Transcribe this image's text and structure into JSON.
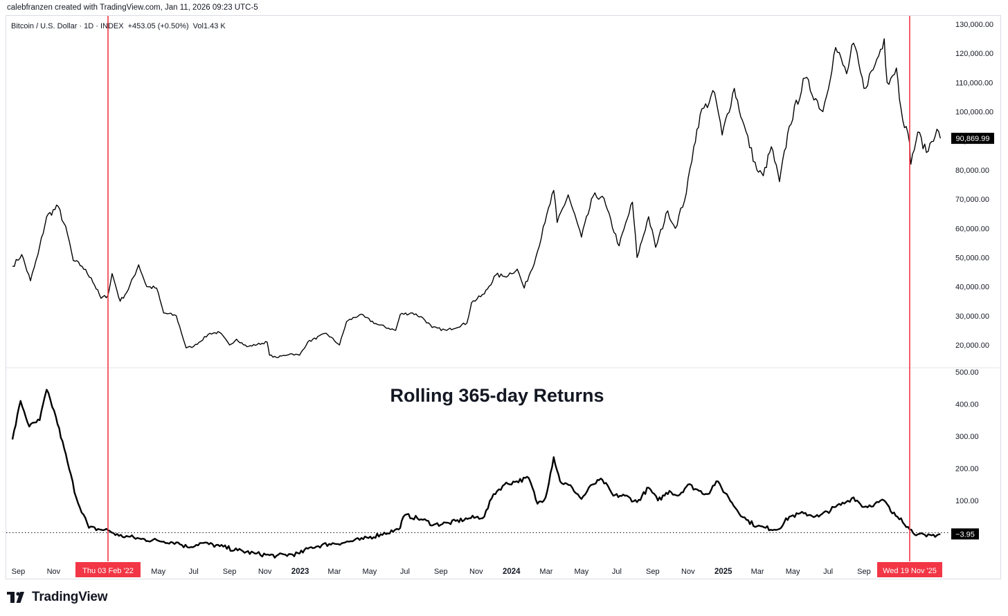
{
  "credit": "calebfranzen created with TradingView.com, Jan 11, 2026 09:23 UTC-5",
  "legend": {
    "symbol": "Bitcoin / U.S. Dollar · 1D · INDEX",
    "change": "+453.05 (+0.50%)",
    "volume": "Vol1.43 K"
  },
  "annotation_title": "Rolling 365-day Returns",
  "brand": {
    "name": "TradingView",
    "logo_icon": "tradingview-logo-icon"
  },
  "colors": {
    "line": "#000000",
    "marker": "#f23645",
    "text": "#131722",
    "axis_text": "#131722"
  },
  "markers": [
    {
      "date": "2022-02-03",
      "label": "Thu 03 Feb '22"
    },
    {
      "date": "2025-11-19",
      "label": "Wed 19 Nov '25"
    }
  ],
  "chart_data": [
    {
      "type": "line",
      "title": "",
      "series_name": "Bitcoin / U.S. Dollar",
      "ylim": [
        14000,
        130000
      ],
      "yticks": [
        20000,
        30000,
        40000,
        50000,
        60000,
        70000,
        80000,
        90000,
        100000,
        110000,
        120000,
        130000
      ],
      "ytick_labels": [
        "20,000.00",
        "30,000.00",
        "40,000.00",
        "50,000.00",
        "60,000.00",
        "70,000.00",
        "80,000.00",
        "90,000.00",
        "100,000.00",
        "110,000.00",
        "120,000.00",
        "130,000.00"
      ],
      "last_value_label": "90,869.99",
      "last_value": 90870,
      "points": [
        [
          "2021-08-22",
          47000
        ],
        [
          "2021-09-07",
          51000
        ],
        [
          "2021-09-22",
          42000
        ],
        [
          "2021-10-05",
          51000
        ],
        [
          "2021-10-20",
          64000
        ],
        [
          "2021-11-09",
          67500
        ],
        [
          "2021-11-25",
          58000
        ],
        [
          "2021-12-05",
          49000
        ],
        [
          "2021-12-20",
          47000
        ],
        [
          "2022-01-05",
          43000
        ],
        [
          "2022-01-22",
          36000
        ],
        [
          "2022-02-03",
          37000
        ],
        [
          "2022-02-10",
          44500
        ],
        [
          "2022-02-24",
          35000
        ],
        [
          "2022-03-10",
          39000
        ],
        [
          "2022-03-28",
          47500
        ],
        [
          "2022-04-11",
          40000
        ],
        [
          "2022-04-28",
          39500
        ],
        [
          "2022-05-10",
          31000
        ],
        [
          "2022-06-01",
          30000
        ],
        [
          "2022-06-18",
          19000
        ],
        [
          "2022-07-01",
          19500
        ],
        [
          "2022-07-29",
          24000
        ],
        [
          "2022-08-15",
          24300
        ],
        [
          "2022-09-01",
          20000
        ],
        [
          "2022-09-13",
          22000
        ],
        [
          "2022-10-01",
          19400
        ],
        [
          "2022-11-05",
          21000
        ],
        [
          "2022-11-09",
          16500
        ],
        [
          "2022-11-21",
          15700
        ],
        [
          "2022-12-15",
          17000
        ],
        [
          "2022-12-31",
          16500
        ],
        [
          "2023-01-14",
          21000
        ],
        [
          "2023-02-15",
          24000
        ],
        [
          "2023-03-10",
          20000
        ],
        [
          "2023-03-22",
          28000
        ],
        [
          "2023-04-14",
          30400
        ],
        [
          "2023-05-15",
          27000
        ],
        [
          "2023-06-15",
          25000
        ],
        [
          "2023-06-23",
          30500
        ],
        [
          "2023-07-14",
          31000
        ],
        [
          "2023-08-01",
          29300
        ],
        [
          "2023-08-17",
          26000
        ],
        [
          "2023-09-11",
          25000
        ],
        [
          "2023-10-16",
          27500
        ],
        [
          "2023-10-24",
          34500
        ],
        [
          "2023-11-15",
          37500
        ],
        [
          "2023-12-05",
          44000
        ],
        [
          "2023-12-20",
          43500
        ],
        [
          "2024-01-11",
          46000
        ],
        [
          "2024-01-23",
          39500
        ],
        [
          "2024-02-12",
          50000
        ],
        [
          "2024-02-28",
          62000
        ],
        [
          "2024-03-14",
          73000
        ],
        [
          "2024-03-20",
          62000
        ],
        [
          "2024-04-08",
          71500
        ],
        [
          "2024-05-01",
          57000
        ],
        [
          "2024-05-21",
          71000
        ],
        [
          "2024-06-06",
          71000
        ],
        [
          "2024-07-05",
          54000
        ],
        [
          "2024-07-28",
          69000
        ],
        [
          "2024-08-05",
          50000
        ],
        [
          "2024-08-25",
          64000
        ],
        [
          "2024-09-06",
          53500
        ],
        [
          "2024-09-27",
          66000
        ],
        [
          "2024-10-10",
          60000
        ],
        [
          "2024-10-29",
          72000
        ],
        [
          "2024-11-11",
          88000
        ],
        [
          "2024-11-22",
          99000
        ],
        [
          "2024-12-17",
          106500
        ],
        [
          "2024-12-30",
          92000
        ],
        [
          "2025-01-20",
          108000
        ],
        [
          "2025-02-03",
          97000
        ],
        [
          "2025-02-28",
          80000
        ],
        [
          "2025-03-11",
          78000
        ],
        [
          "2025-03-25",
          88000
        ],
        [
          "2025-04-08",
          76000
        ],
        [
          "2025-04-25",
          95000
        ],
        [
          "2025-05-22",
          111500
        ],
        [
          "2025-06-22",
          100000
        ],
        [
          "2025-07-14",
          122000
        ],
        [
          "2025-08-02",
          113000
        ],
        [
          "2025-08-14",
          123500
        ],
        [
          "2025-09-01",
          108000
        ],
        [
          "2025-09-20",
          116000
        ],
        [
          "2025-10-06",
          125000
        ],
        [
          "2025-10-11",
          110000
        ],
        [
          "2025-10-27",
          115000
        ],
        [
          "2025-11-04",
          101000
        ],
        [
          "2025-11-19",
          89000
        ],
        [
          "2025-11-21",
          82000
        ],
        [
          "2025-12-03",
          93000
        ],
        [
          "2025-12-18",
          86000
        ],
        [
          "2026-01-05",
          94000
        ],
        [
          "2026-01-11",
          90870
        ]
      ]
    },
    {
      "type": "line",
      "title": "Rolling 365-day Returns",
      "ylim": [
        -80,
        510
      ],
      "yticks": [
        100,
        200,
        300,
        400,
        500
      ],
      "ytick_labels": [
        "100.00",
        "200.00",
        "300.00",
        "400.00",
        "500.00"
      ],
      "baseline": 0,
      "last_value_label": "−3.95",
      "last_value": -3.95,
      "points": [
        [
          "2021-08-22",
          290
        ],
        [
          "2021-09-05",
          410
        ],
        [
          "2021-09-20",
          330
        ],
        [
          "2021-10-08",
          350
        ],
        [
          "2021-10-20",
          445
        ],
        [
          "2021-11-05",
          360
        ],
        [
          "2021-11-25",
          220
        ],
        [
          "2021-12-10",
          110
        ],
        [
          "2022-01-01",
          15
        ],
        [
          "2022-01-20",
          10
        ],
        [
          "2022-02-03",
          8
        ],
        [
          "2022-02-22",
          -10
        ],
        [
          "2022-03-10",
          -12
        ],
        [
          "2022-04-01",
          -20
        ],
        [
          "2022-05-01",
          -25
        ],
        [
          "2022-06-01",
          -30
        ],
        [
          "2022-06-20",
          -45
        ],
        [
          "2022-07-15",
          -32
        ],
        [
          "2022-08-15",
          -42
        ],
        [
          "2022-09-15",
          -55
        ],
        [
          "2022-10-15",
          -65
        ],
        [
          "2022-11-09",
          -70
        ],
        [
          "2022-11-21",
          -72
        ],
        [
          "2022-12-31",
          -65
        ],
        [
          "2023-01-20",
          -45
        ],
        [
          "2023-02-20",
          -35
        ],
        [
          "2023-03-20",
          -30
        ],
        [
          "2023-04-20",
          -20
        ],
        [
          "2023-05-20",
          -5
        ],
        [
          "2023-06-20",
          10
        ],
        [
          "2023-07-01",
          55
        ],
        [
          "2023-08-01",
          40
        ],
        [
          "2023-08-20",
          25
        ],
        [
          "2023-09-15",
          30
        ],
        [
          "2023-10-20",
          45
        ],
        [
          "2023-11-15",
          50
        ],
        [
          "2023-12-01",
          120
        ],
        [
          "2023-12-20",
          150
        ],
        [
          "2024-01-10",
          160
        ],
        [
          "2024-01-31",
          170
        ],
        [
          "2024-02-15",
          90
        ],
        [
          "2024-02-29",
          110
        ],
        [
          "2024-03-14",
          235
        ],
        [
          "2024-03-25",
          160
        ],
        [
          "2024-04-15",
          140
        ],
        [
          "2024-05-01",
          105
        ],
        [
          "2024-05-20",
          150
        ],
        [
          "2024-06-06",
          165
        ],
        [
          "2024-06-25",
          115
        ],
        [
          "2024-07-15",
          115
        ],
        [
          "2024-08-05",
          95
        ],
        [
          "2024-08-25",
          140
        ],
        [
          "2024-09-10",
          100
        ],
        [
          "2024-09-30",
          130
        ],
        [
          "2024-10-15",
          115
        ],
        [
          "2024-11-01",
          150
        ],
        [
          "2024-11-20",
          130
        ],
        [
          "2024-12-05",
          120
        ],
        [
          "2024-12-20",
          160
        ],
        [
          "2025-01-10",
          110
        ],
        [
          "2025-01-25",
          70
        ],
        [
          "2025-02-10",
          40
        ],
        [
          "2025-02-28",
          20
        ],
        [
          "2025-03-15",
          15
        ],
        [
          "2025-04-05",
          10
        ],
        [
          "2025-04-25",
          50
        ],
        [
          "2025-05-20",
          60
        ],
        [
          "2025-06-15",
          50
        ],
        [
          "2025-07-14",
          80
        ],
        [
          "2025-08-01",
          95
        ],
        [
          "2025-08-14",
          110
        ],
        [
          "2025-09-01",
          80
        ],
        [
          "2025-09-20",
          90
        ],
        [
          "2025-10-06",
          100
        ],
        [
          "2025-10-20",
          60
        ],
        [
          "2025-11-04",
          45
        ],
        [
          "2025-11-19",
          10
        ],
        [
          "2025-12-03",
          -5
        ],
        [
          "2025-12-18",
          -12
        ],
        [
          "2026-01-11",
          -4
        ]
      ]
    }
  ],
  "x_axis": {
    "ticks": [
      {
        "date": "2021-09-01",
        "label": "Sep",
        "bold": false
      },
      {
        "date": "2021-11-01",
        "label": "Nov",
        "bold": false
      },
      {
        "date": "2022-05-01",
        "label": "May",
        "bold": false
      },
      {
        "date": "2022-07-01",
        "label": "Jul",
        "bold": false
      },
      {
        "date": "2022-09-01",
        "label": "Sep",
        "bold": false
      },
      {
        "date": "2022-11-01",
        "label": "Nov",
        "bold": false
      },
      {
        "date": "2023-01-01",
        "label": "2023",
        "bold": true
      },
      {
        "date": "2023-03-01",
        "label": "Mar",
        "bold": false
      },
      {
        "date": "2023-05-01",
        "label": "May",
        "bold": false
      },
      {
        "date": "2023-07-01",
        "label": "Jul",
        "bold": false
      },
      {
        "date": "2023-09-01",
        "label": "Sep",
        "bold": false
      },
      {
        "date": "2023-11-01",
        "label": "Nov",
        "bold": false
      },
      {
        "date": "2024-01-01",
        "label": "2024",
        "bold": true
      },
      {
        "date": "2024-03-01",
        "label": "Mar",
        "bold": false
      },
      {
        "date": "2024-05-01",
        "label": "May",
        "bold": false
      },
      {
        "date": "2024-07-01",
        "label": "Jul",
        "bold": false
      },
      {
        "date": "2024-09-01",
        "label": "Sep",
        "bold": false
      },
      {
        "date": "2024-11-01",
        "label": "Nov",
        "bold": false
      },
      {
        "date": "2025-01-01",
        "label": "2025",
        "bold": true
      },
      {
        "date": "2025-03-01",
        "label": "Mar",
        "bold": false
      },
      {
        "date": "2025-05-01",
        "label": "May",
        "bold": false
      },
      {
        "date": "2025-07-01",
        "label": "Jul",
        "bold": false
      },
      {
        "date": "2025-09-01",
        "label": "Sep",
        "bold": false
      }
    ]
  }
}
